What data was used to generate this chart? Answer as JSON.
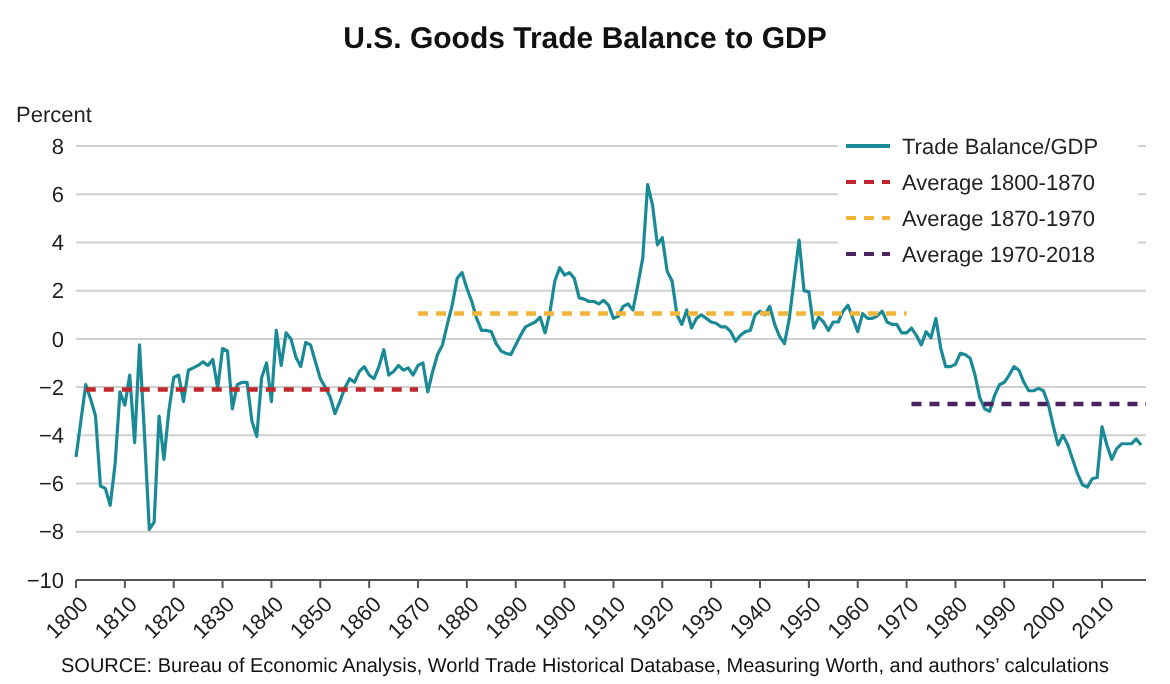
{
  "chart_data": {
    "type": "line",
    "title": "U.S. Goods Trade Balance to GDP",
    "ylabel": "Percent",
    "xlim": [
      1800,
      2019
    ],
    "xticks": [
      1800,
      1810,
      1820,
      1830,
      1840,
      1850,
      1860,
      1870,
      1880,
      1890,
      1900,
      1910,
      1920,
      1930,
      1940,
      1950,
      1960,
      1970,
      1980,
      1990,
      2000,
      2010
    ],
    "ylim": [
      -10,
      8
    ],
    "yticks": [
      -10,
      -8,
      -6,
      -4,
      -2,
      0,
      2,
      4,
      6,
      8
    ],
    "grid": "y",
    "legend": "top right",
    "annotations": [
      "SOURCE: Bureau of Economic Analysis, World Trade Historical Database, Measuring Worth, and authors’ calculations"
    ],
    "series": [
      {
        "name": "Trade Balance/GDP",
        "color": "#1a8a96",
        "line_style": "solid",
        "x": [
          1800,
          1801,
          1802,
          1803,
          1804,
          1805,
          1806,
          1807,
          1808,
          1809,
          1810,
          1811,
          1812,
          1813,
          1814,
          1815,
          1816,
          1817,
          1818,
          1819,
          1820,
          1821,
          1822,
          1823,
          1824,
          1825,
          1826,
          1827,
          1828,
          1829,
          1830,
          1831,
          1832,
          1833,
          1834,
          1835,
          1836,
          1837,
          1838,
          1839,
          1840,
          1841,
          1842,
          1843,
          1844,
          1845,
          1846,
          1847,
          1848,
          1849,
          1850,
          1851,
          1852,
          1853,
          1854,
          1855,
          1856,
          1857,
          1858,
          1859,
          1860,
          1861,
          1862,
          1863,
          1864,
          1865,
          1866,
          1867,
          1868,
          1869,
          1870,
          1871,
          1872,
          1873,
          1874,
          1875,
          1876,
          1877,
          1878,
          1879,
          1880,
          1881,
          1882,
          1883,
          1884,
          1885,
          1886,
          1887,
          1888,
          1889,
          1890,
          1891,
          1892,
          1893,
          1894,
          1895,
          1896,
          1897,
          1898,
          1899,
          1900,
          1901,
          1902,
          1903,
          1904,
          1905,
          1906,
          1907,
          1908,
          1909,
          1910,
          1911,
          1912,
          1913,
          1914,
          1915,
          1916,
          1917,
          1918,
          1919,
          1920,
          1921,
          1922,
          1923,
          1924,
          1925,
          1926,
          1927,
          1928,
          1929,
          1930,
          1931,
          1932,
          1933,
          1934,
          1935,
          1936,
          1937,
          1938,
          1939,
          1940,
          1941,
          1942,
          1943,
          1944,
          1945,
          1946,
          1947,
          1948,
          1949,
          1950,
          1951,
          1952,
          1953,
          1954,
          1955,
          1956,
          1957,
          1958,
          1959,
          1960,
          1961,
          1962,
          1963,
          1964,
          1965,
          1966,
          1967,
          1968,
          1969,
          1970,
          1971,
          1972,
          1973,
          1974,
          1975,
          1976,
          1977,
          1978,
          1979,
          1980,
          1981,
          1982,
          1983,
          1984,
          1985,
          1986,
          1987,
          1988,
          1989,
          1990,
          1991,
          1992,
          1993,
          1994,
          1995,
          1996,
          1997,
          1998,
          1999,
          2000,
          2001,
          2002,
          2003,
          2004,
          2005,
          2006,
          2007,
          2008,
          2009,
          2010,
          2011,
          2012,
          2013,
          2014,
          2015,
          2016,
          2017,
          2018
        ],
        "values": [
          -4.9,
          -3.4,
          -1.9,
          -2.5,
          -3.2,
          -6.1,
          -6.2,
          -6.9,
          -5.2,
          -2.2,
          -2.75,
          -1.5,
          -4.3,
          -0.25,
          -3.9,
          -7.9,
          -7.6,
          -3.2,
          -5.0,
          -3.0,
          -1.6,
          -1.5,
          -2.6,
          -1.3,
          -1.2,
          -1.1,
          -0.95,
          -1.1,
          -0.85,
          -2.05,
          -0.4,
          -0.5,
          -2.9,
          -1.9,
          -1.8,
          -1.8,
          -3.4,
          -4.05,
          -1.6,
          -1.0,
          -2.6,
          0.35,
          -1.1,
          0.25,
          0.0,
          -0.75,
          -1.15,
          -0.15,
          -0.25,
          -0.95,
          -1.65,
          -2.0,
          -2.4,
          -3.1,
          -2.6,
          -2.05,
          -1.65,
          -1.8,
          -1.35,
          -1.15,
          -1.5,
          -1.65,
          -1.15,
          -0.45,
          -1.5,
          -1.35,
          -1.1,
          -1.3,
          -1.2,
          -1.5,
          -1.1,
          -1.0,
          -2.2,
          -1.35,
          -0.65,
          -0.25,
          0.6,
          1.4,
          2.5,
          2.75,
          2.1,
          1.55,
          0.85,
          0.35,
          0.35,
          0.3,
          -0.2,
          -0.5,
          -0.6,
          -0.65,
          -0.25,
          0.15,
          0.5,
          0.6,
          0.7,
          0.9,
          0.25,
          1.1,
          2.4,
          2.95,
          2.65,
          2.75,
          2.5,
          1.7,
          1.65,
          1.55,
          1.55,
          1.45,
          1.6,
          1.4,
          0.85,
          0.95,
          1.35,
          1.45,
          1.2,
          2.25,
          3.35,
          6.4,
          5.55,
          3.9,
          4.2,
          2.8,
          2.4,
          1.0,
          0.6,
          1.2,
          0.45,
          0.85,
          1.0,
          0.85,
          0.7,
          0.65,
          0.5,
          0.5,
          0.3,
          -0.1,
          0.15,
          0.3,
          0.35,
          1.0,
          1.15,
          1.0,
          1.35,
          0.6,
          0.1,
          -0.2,
          0.85,
          2.5,
          4.1,
          2.0,
          1.95,
          0.45,
          0.9,
          0.7,
          0.35,
          0.7,
          0.7,
          1.15,
          1.4,
          0.85,
          0.3,
          1.05,
          0.85,
          0.85,
          0.95,
          1.15,
          0.7,
          0.6,
          0.6,
          0.25,
          0.25,
          0.45,
          0.15,
          -0.25,
          0.3,
          0.05,
          0.85,
          -0.4,
          -1.15,
          -1.15,
          -1.05,
          -0.6,
          -0.65,
          -0.8,
          -1.5,
          -2.45,
          -2.9,
          -3.0,
          -2.35,
          -1.9,
          -1.8,
          -1.5,
          -1.15,
          -1.3,
          -1.8,
          -2.15,
          -2.15,
          -2.05,
          -2.15,
          -2.7,
          -3.6,
          -4.4,
          -4.0,
          -4.4,
          -5.0,
          -5.6,
          -6.05,
          -6.15,
          -5.8,
          -5.75,
          -3.65,
          -4.4,
          -5.0,
          -4.55,
          -4.35,
          -4.35,
          -4.35,
          -4.15,
          -4.4
        ]
      },
      {
        "name": "Average 1800-1870",
        "color": "#c0282d",
        "line_style": "dashed",
        "x": [
          1802,
          1870
        ],
        "values": [
          -2.1,
          -2.1
        ]
      },
      {
        "name": "Average 1870-1970",
        "color": "#f2b53a",
        "line_style": "dashed",
        "x": [
          1870,
          1970
        ],
        "values": [
          1.05,
          1.05
        ]
      },
      {
        "name": "Average 1970-2018",
        "color": "#4a2360",
        "line_style": "dashed",
        "x": [
          1971,
          2019
        ],
        "values": [
          -2.7,
          -2.7
        ]
      }
    ]
  }
}
